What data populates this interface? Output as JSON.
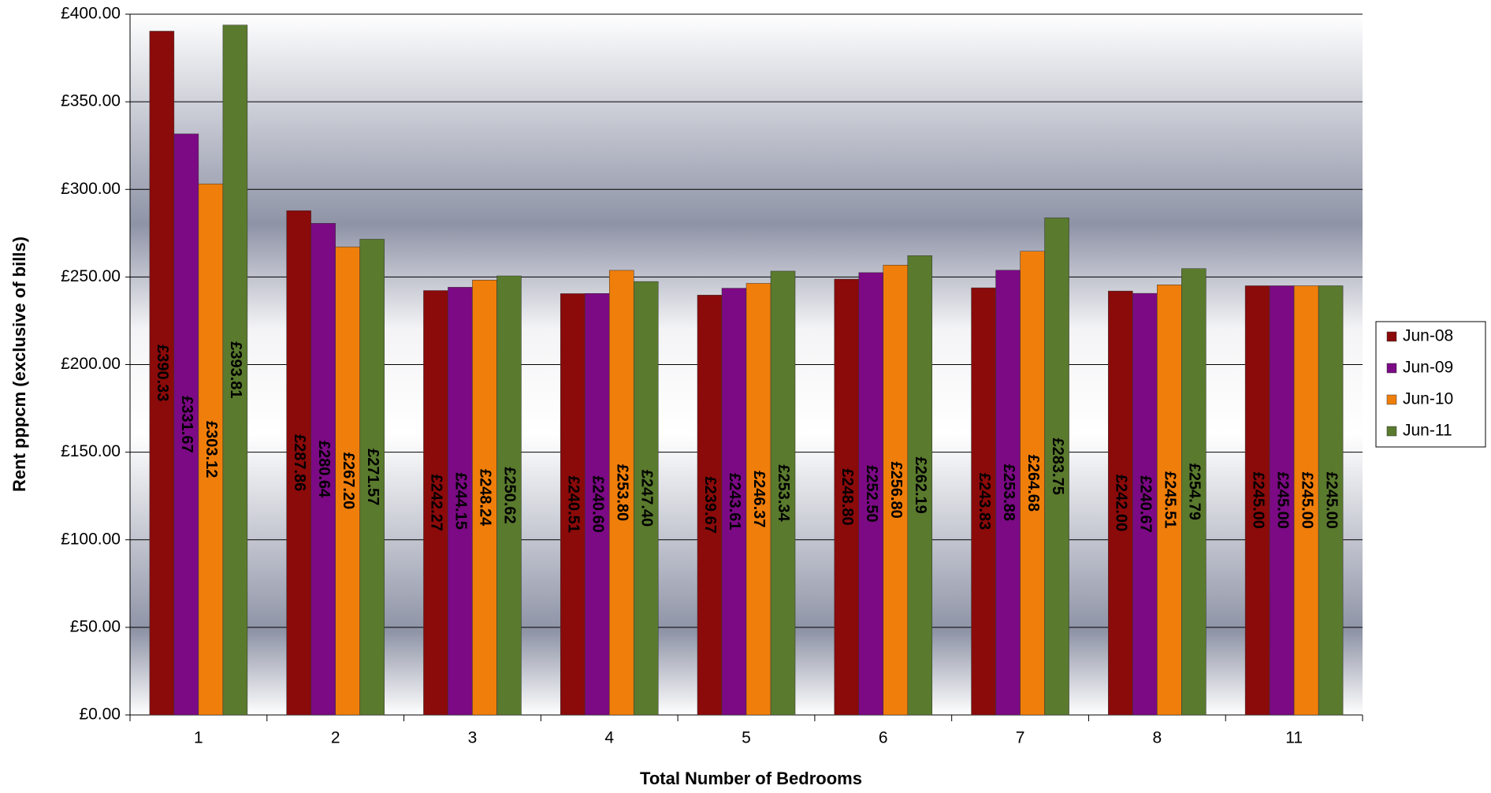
{
  "chart_data": {
    "type": "bar",
    "y_label": "Rent pppcm (exclusive of bills)",
    "x_label": "Total Number of Bedrooms",
    "categories": [
      "1",
      "2",
      "3",
      "4",
      "5",
      "6",
      "7",
      "8",
      "11"
    ],
    "series": [
      {
        "name": "Jun-08",
        "color": "#8b0a0a",
        "values": [
          390.33,
          287.86,
          242.27,
          240.51,
          239.67,
          248.8,
          243.83,
          242.0,
          245.0
        ],
        "value_labels": [
          "£390.33",
          "£287.86",
          "£242.27",
          "£240.51",
          "£239.67",
          "£248.80",
          "£243.83",
          "£242.00",
          "£245.00"
        ]
      },
      {
        "name": "Jun-09",
        "color": "#7b0a84",
        "values": [
          331.67,
          280.64,
          244.15,
          240.6,
          243.61,
          252.5,
          253.88,
          240.67,
          245.0
        ],
        "value_labels": [
          "£331.67",
          "£280.64",
          "£244.15",
          "£240.60",
          "£243.61",
          "£252.50",
          "£253.88",
          "£240.67",
          "£245.00"
        ]
      },
      {
        "name": "Jun-10",
        "color": "#f07e0a",
        "values": [
          303.12,
          267.2,
          248.24,
          253.8,
          246.37,
          256.8,
          264.68,
          245.51,
          245.0
        ],
        "value_labels": [
          "£303.12",
          "£267.20",
          "£248.24",
          "£253.80",
          "£246.37",
          "£256.80",
          "£264.68",
          "£245.51",
          "£245.00"
        ]
      },
      {
        "name": "Jun-11",
        "color": "#5a7a2e",
        "values": [
          393.81,
          271.57,
          250.62,
          247.4,
          253.34,
          262.19,
          283.75,
          254.79,
          245.0
        ],
        "value_labels": [
          "£393.81",
          "£271.57",
          "£250.62",
          "£247.40",
          "£253.34",
          "£262.19",
          "£283.75",
          "£254.79",
          "£245.00"
        ]
      }
    ],
    "ylim": [
      0,
      400
    ],
    "yticks": [
      {
        "value": 0,
        "label": "£0.00"
      },
      {
        "value": 50,
        "label": "£50.00"
      },
      {
        "value": 100,
        "label": "£100.00"
      },
      {
        "value": 150,
        "label": "£150.00"
      },
      {
        "value": 200,
        "label": "£200.00"
      },
      {
        "value": 250,
        "label": "£250.00"
      },
      {
        "value": 300,
        "label": "£300.00"
      },
      {
        "value": 350,
        "label": "£350.00"
      },
      {
        "value": 400,
        "label": "£400.00"
      }
    ],
    "grid": true,
    "legend": "right"
  }
}
